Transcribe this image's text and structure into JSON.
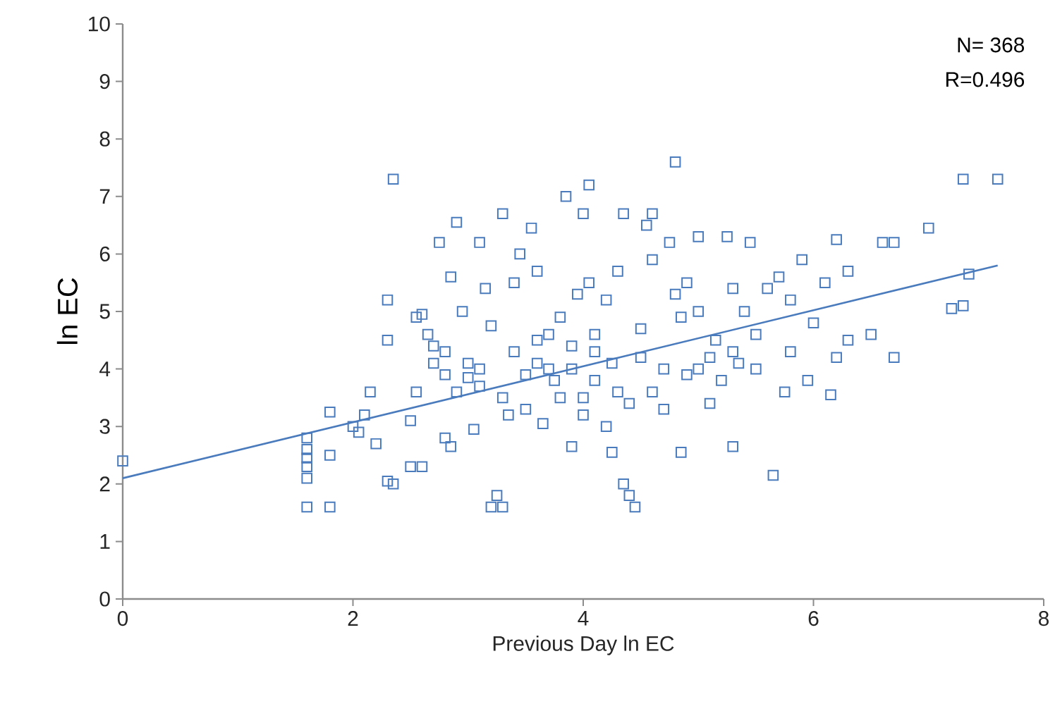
{
  "chart_data": {
    "type": "scatter",
    "xlabel": "Previous Day ln EC",
    "ylabel": "ln EC",
    "xlim": [
      0,
      8
    ],
    "ylim": [
      0,
      10
    ],
    "xticks": [
      0,
      2,
      4,
      6,
      8
    ],
    "yticks": [
      0,
      1,
      2,
      3,
      4,
      5,
      6,
      7,
      8,
      9,
      10
    ],
    "grid": false,
    "marker": "square",
    "annotations": [
      "N= 368",
      "R=0.496"
    ],
    "series": [
      {
        "color": "#4a7bbd",
        "x": [
          0,
          1.6,
          1.6,
          1.6,
          1.6,
          1.6,
          1.6,
          1.8,
          1.8,
          1.8,
          2.0,
          2.05,
          2.1,
          2.15,
          2.2,
          2.3,
          2.35,
          2.3,
          2.3,
          2.35,
          2.5,
          2.55,
          2.5,
          2.6,
          2.55,
          2.6,
          2.65,
          2.7,
          2.75,
          2.7,
          2.8,
          2.8,
          2.85,
          2.8,
          2.85,
          2.9,
          2.9,
          2.95,
          3.0,
          3.0,
          3.05,
          3.1,
          3.1,
          3.15,
          3.2,
          3.2,
          3.25,
          3.3,
          3.3,
          3.35,
          3.4,
          3.4,
          3.45,
          3.5,
          3.55,
          3.6,
          3.6,
          3.65,
          3.7,
          3.75,
          3.8,
          3.8,
          3.85,
          3.9,
          3.9,
          3.95,
          4.0,
          4.0,
          4.05,
          4.05,
          4.1,
          4.1,
          4.2,
          4.25,
          4.25,
          4.3,
          4.35,
          4.35,
          4.4,
          4.45,
          4.5,
          4.55,
          4.6,
          4.6,
          4.6,
          4.7,
          4.75,
          4.8,
          4.85,
          4.85,
          4.9,
          5.0,
          5.0,
          5.1,
          5.15,
          5.25,
          5.3,
          5.3,
          5.35,
          5.45,
          5.5,
          5.6,
          5.65,
          5.7,
          5.75,
          5.8,
          5.9,
          5.95,
          6.1,
          6.15,
          6.2,
          6.2,
          6.3,
          6.3,
          6.5,
          6.6,
          6.7,
          6.7,
          7.0,
          7.2,
          7.3,
          7.3,
          7.35,
          7.6,
          3.5,
          3.7,
          3.9,
          4.1,
          4.3,
          4.5,
          4.7,
          4.9,
          5.1,
          5.3,
          5.5,
          3.3,
          3.1,
          4.0,
          4.4,
          5.2,
          5.4,
          6.0,
          5.8,
          3.6,
          4.2,
          4.8,
          5.0
        ],
        "values": [
          2.4,
          2.8,
          2.6,
          2.45,
          2.3,
          2.1,
          1.6,
          3.25,
          2.5,
          1.6,
          3.0,
          2.9,
          3.2,
          3.6,
          2.7,
          2.05,
          2.0,
          5.2,
          4.5,
          7.3,
          3.1,
          3.6,
          2.3,
          2.3,
          4.9,
          4.95,
          4.6,
          4.4,
          6.2,
          4.1,
          4.3,
          3.9,
          5.6,
          2.8,
          2.65,
          3.6,
          6.55,
          5.0,
          4.1,
          3.85,
          2.95,
          6.2,
          4.0,
          5.4,
          4.75,
          1.6,
          1.8,
          1.6,
          6.7,
          3.2,
          4.3,
          5.5,
          6.0,
          3.3,
          6.45,
          5.7,
          4.1,
          3.05,
          4.6,
          3.8,
          3.5,
          4.9,
          7.0,
          4.4,
          2.65,
          5.3,
          6.7,
          3.2,
          7.2,
          5.5,
          4.6,
          3.8,
          3.0,
          2.55,
          4.1,
          5.7,
          6.7,
          2.0,
          1.8,
          1.6,
          4.7,
          6.5,
          6.7,
          5.9,
          3.6,
          3.3,
          6.2,
          7.6,
          2.55,
          4.9,
          5.5,
          6.3,
          4.0,
          3.4,
          4.5,
          6.3,
          5.4,
          2.65,
          4.1,
          6.2,
          4.6,
          5.4,
          2.15,
          5.6,
          3.6,
          5.2,
          5.9,
          3.8,
          5.5,
          3.55,
          6.25,
          4.2,
          4.5,
          5.7,
          4.6,
          6.2,
          6.2,
          4.2,
          6.45,
          5.05,
          7.3,
          5.1,
          5.65,
          7.3,
          3.9,
          4.0,
          4.0,
          4.3,
          3.6,
          4.2,
          4.0,
          3.9,
          4.2,
          4.3,
          4.0,
          3.5,
          3.7,
          3.5,
          3.4,
          3.8,
          5.0,
          4.8,
          4.3,
          4.5,
          5.2,
          5.3,
          5.0
        ]
      },
      {
        "type": "line",
        "color": "#4a7bbd",
        "marker": "none",
        "x": [
          0,
          7.6
        ],
        "values": [
          2.1,
          5.8
        ]
      }
    ]
  }
}
